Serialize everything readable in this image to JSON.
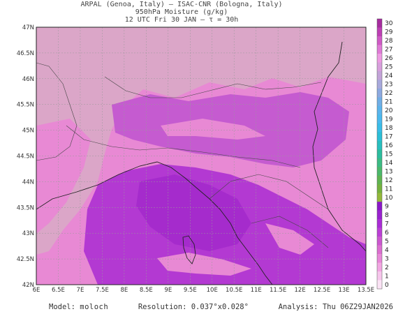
{
  "title": {
    "line1": "ARPAL (Genoa, Italy)  –  ISAC-CNR (Bologna, Italy)",
    "line2": "950hPa Moisture (g/kg)",
    "line3": "12 UTC Fri 30 JAN  –  τ = 30h"
  },
  "axes": {
    "lon_labels": [
      "6E",
      "6.5E",
      "7E",
      "7.5E",
      "8E",
      "8.5E",
      "9E",
      "9.5E",
      "10E",
      "10.5E",
      "11E",
      "11.5E",
      "12E",
      "12.5E",
      "13E",
      "13.5E"
    ],
    "lat_labels": [
      "47N",
      "46.5N",
      "46N",
      "45.5N",
      "45N",
      "44.5N",
      "44N",
      "43.5N",
      "43N",
      "42.5N",
      "42N"
    ]
  },
  "colorbar": {
    "levels": [
      "30",
      "29",
      "28",
      "27",
      "26",
      "25",
      "24",
      "23",
      "22",
      "21",
      "20",
      "19",
      "18",
      "17",
      "16",
      "15",
      "14",
      "13",
      "12",
      "11",
      "10",
      "9",
      "8",
      "7",
      "6",
      "5",
      "4",
      "3",
      "2",
      "1",
      "0"
    ],
    "colors": [
      "#a62c9f",
      "#bd3fb4",
      "#d05ac6",
      "#e07ad6",
      "#ee9be3",
      "#d89fdc",
      "#c3a3d8",
      "#a8a9dc",
      "#8da9e0",
      "#71aee6",
      "#5bb4ec",
      "#4ab9ee",
      "#39bde8",
      "#2bbfd7",
      "#28bfbf",
      "#2cbd9f",
      "#3bbb84",
      "#4bb86b",
      "#5fb451",
      "#75b13e",
      "#94b83a",
      "#8a18c8",
      "#9a22d0",
      "#aa2cd6",
      "#bb3fd6",
      "#cc57d0",
      "#dc6fd0",
      "#e888d8",
      "#f2a6e2",
      "#f7c6ec",
      "#fbe3f5"
    ]
  },
  "footer": {
    "model_label": "Model:",
    "model_value": "moloch",
    "resolution_label": "Resolution:",
    "resolution_value": "0.037°x0.028°",
    "analysis_label": "Analysis:",
    "analysis_value": "Thu 06Z29JAN2026"
  },
  "field_colors": {
    "dry": "#dba6c8",
    "mid": "#e889d4",
    "moist": "#c55bd0",
    "wet": "#b339d2",
    "wettest": "#a52bcc"
  }
}
